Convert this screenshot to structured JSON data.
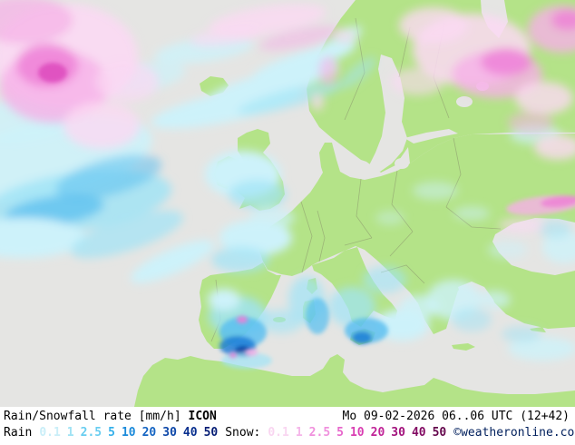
{
  "legend": {
    "title": "Rain/Snowfall rate [mm/h] ",
    "model": "ICON",
    "datetime": "Mo 09-02-2026 06..06 UTC (12+42)",
    "rain_label": "Rain",
    "snow_label": "Snow:",
    "rain_scale": [
      {
        "label": "0.1",
        "color": "#c9eef8"
      },
      {
        "label": "1",
        "color": "#9fe2f4"
      },
      {
        "label": "2.5",
        "color": "#68cdf0"
      },
      {
        "label": "5",
        "color": "#35b0ea"
      },
      {
        "label": "10",
        "color": "#1b8ada"
      },
      {
        "label": "20",
        "color": "#1464c2"
      },
      {
        "label": "30",
        "color": "#0d47a8"
      },
      {
        "label": "40",
        "color": "#082f8e"
      },
      {
        "label": "50",
        "color": "#041c74"
      }
    ],
    "snow_scale": [
      {
        "label": "0.1",
        "color": "#f9d6f1"
      },
      {
        "label": "1",
        "color": "#f5b5e9"
      },
      {
        "label": "2.5",
        "color": "#f090dd"
      },
      {
        "label": "5",
        "color": "#e766cb"
      },
      {
        "label": "10",
        "color": "#d93eb2"
      },
      {
        "label": "20",
        "color": "#c02397"
      },
      {
        "label": "30",
        "color": "#a2117c"
      },
      {
        "label": "40",
        "color": "#830b63"
      },
      {
        "label": "50",
        "color": "#64064c"
      }
    ],
    "copyright": "©weatheronline.co.uk"
  },
  "colors": {
    "sea": "#e5e5e3",
    "land": "#b4e388",
    "border": "#8f9e6e",
    "rainLight": "#cdf2fa",
    "rainMid": "#9fe4f6",
    "rainStrong": "#55bdf0",
    "rainIntense": "#1a7ad6",
    "rainCore": "#0b3fa0",
    "snowLight": "#fbd9f3",
    "snowMid": "#f6b0e7",
    "snowStrong": "#ee7ed6",
    "snowCore": "#d83db6"
  }
}
